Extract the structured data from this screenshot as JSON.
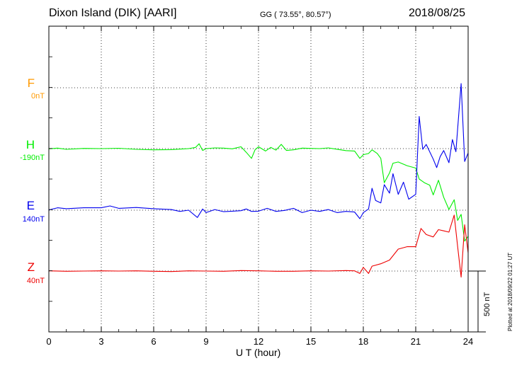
{
  "header": {
    "station": "Dixon Island (DIK)  [AARI]",
    "coords": "GG ( 73.55°,  80.57°)",
    "date": "2018/08/25"
  },
  "channels": [
    {
      "name": "F",
      "baseline": "0nT",
      "color": "#ff9900"
    },
    {
      "name": "H",
      "baseline": "-190nT",
      "color": "#00ee00"
    },
    {
      "name": "E",
      "baseline": "140nT",
      "color": "#0000ee"
    },
    {
      "name": "Z",
      "baseline": "40nT",
      "color": "#ee0000"
    }
  ],
  "scale_label": "500 nT",
  "plotted_note": "Plotted at 2018/09/22 01:27 UT",
  "chart_data": {
    "type": "line",
    "title": "Dixon Island (DIK)  [AARI]",
    "xlabel": "U T (hour)",
    "ylabel": "",
    "xlim": [
      0,
      24
    ],
    "x_ticks": [
      0,
      3,
      6,
      9,
      12,
      15,
      18,
      21,
      24
    ],
    "grid": true,
    "y_scale_bar_nT": 500,
    "series": [
      {
        "name": "H",
        "baseline_nT": -190,
        "color": "#00ee00",
        "points": [
          [
            0,
            -2
          ],
          [
            0.5,
            4
          ],
          [
            1,
            -6
          ],
          [
            2,
            2
          ],
          [
            3,
            0
          ],
          [
            4,
            3
          ],
          [
            5,
            -6
          ],
          [
            6,
            -10
          ],
          [
            7,
            -8
          ],
          [
            7.5,
            -4
          ],
          [
            8,
            0
          ],
          [
            8.4,
            10
          ],
          [
            8.6,
            40
          ],
          [
            8.8,
            -15
          ],
          [
            9,
            0
          ],
          [
            9.5,
            6
          ],
          [
            10,
            4
          ],
          [
            10.5,
            -2
          ],
          [
            11,
            15
          ],
          [
            11.3,
            -30
          ],
          [
            11.6,
            -80
          ],
          [
            11.8,
            -10
          ],
          [
            12,
            15
          ],
          [
            12.4,
            -20
          ],
          [
            12.7,
            10
          ],
          [
            13,
            -12
          ],
          [
            13.3,
            35
          ],
          [
            13.6,
            -15
          ],
          [
            14,
            -10
          ],
          [
            14.5,
            4
          ],
          [
            15,
            2
          ],
          [
            15.5,
            0
          ],
          [
            16,
            6
          ],
          [
            16.5,
            -5
          ],
          [
            17,
            -16
          ],
          [
            17.5,
            -20
          ],
          [
            17.8,
            -80
          ],
          [
            18,
            -50
          ],
          [
            18.3,
            -40
          ],
          [
            18.5,
            -10
          ],
          [
            18.8,
            -40
          ],
          [
            19,
            -80
          ],
          [
            19.2,
            -280
          ],
          [
            19.5,
            -200
          ],
          [
            19.7,
            -120
          ],
          [
            20,
            -110
          ],
          [
            20.5,
            -140
          ],
          [
            21,
            -160
          ],
          [
            21.2,
            -250
          ],
          [
            21.5,
            -280
          ],
          [
            21.8,
            -300
          ],
          [
            22,
            -380
          ],
          [
            22.3,
            -260
          ],
          [
            22.6,
            -400
          ],
          [
            22.9,
            -500
          ],
          [
            23.2,
            -420
          ],
          [
            23.4,
            -590
          ],
          [
            23.6,
            -540
          ],
          [
            23.8,
            -760
          ],
          [
            24,
            -720
          ]
        ]
      },
      {
        "name": "E",
        "baseline_nT": 140,
        "color": "#0000ee",
        "points": [
          [
            0,
            2
          ],
          [
            0.5,
            20
          ],
          [
            1,
            12
          ],
          [
            2,
            20
          ],
          [
            3,
            20
          ],
          [
            3.5,
            35
          ],
          [
            4,
            15
          ],
          [
            5,
            22
          ],
          [
            6,
            12
          ],
          [
            7,
            5
          ],
          [
            7.5,
            -10
          ],
          [
            8,
            0
          ],
          [
            8.5,
            -60
          ],
          [
            8.8,
            10
          ],
          [
            9,
            -20
          ],
          [
            9.5,
            5
          ],
          [
            10,
            -12
          ],
          [
            10.5,
            -8
          ],
          [
            11,
            -4
          ],
          [
            11.3,
            10
          ],
          [
            11.6,
            -10
          ],
          [
            12,
            -8
          ],
          [
            12.5,
            15
          ],
          [
            13,
            -10
          ],
          [
            13.5,
            -2
          ],
          [
            14,
            15
          ],
          [
            14.5,
            -20
          ],
          [
            15,
            0
          ],
          [
            15.5,
            -10
          ],
          [
            16,
            5
          ],
          [
            16.5,
            -20
          ],
          [
            17,
            -10
          ],
          [
            17.5,
            -15
          ],
          [
            17.8,
            -70
          ],
          [
            18,
            -20
          ],
          [
            18.3,
            10
          ],
          [
            18.5,
            180
          ],
          [
            18.7,
            80
          ],
          [
            19,
            60
          ],
          [
            19.2,
            210
          ],
          [
            19.5,
            140
          ],
          [
            19.7,
            300
          ],
          [
            20,
            130
          ],
          [
            20.3,
            230
          ],
          [
            20.6,
            90
          ],
          [
            21,
            130
          ],
          [
            21.2,
            770
          ],
          [
            21.4,
            500
          ],
          [
            21.6,
            540
          ],
          [
            22,
            420
          ],
          [
            22.2,
            350
          ],
          [
            22.4,
            440
          ],
          [
            22.6,
            490
          ],
          [
            22.9,
            390
          ],
          [
            23.1,
            580
          ],
          [
            23.3,
            480
          ],
          [
            23.6,
            1040
          ],
          [
            23.8,
            400
          ],
          [
            24,
            470
          ]
        ]
      },
      {
        "name": "Z",
        "baseline_nT": 40,
        "color": "#ee0000",
        "points": [
          [
            0,
            2
          ],
          [
            1,
            -2
          ],
          [
            2,
            0
          ],
          [
            3,
            2
          ],
          [
            4,
            0
          ],
          [
            5,
            2
          ],
          [
            6,
            -2
          ],
          [
            7,
            -4
          ],
          [
            8,
            2
          ],
          [
            9,
            0
          ],
          [
            10,
            -2
          ],
          [
            11,
            4
          ],
          [
            12,
            2
          ],
          [
            13,
            -2
          ],
          [
            14,
            -2
          ],
          [
            15,
            2
          ],
          [
            16,
            0
          ],
          [
            17,
            4
          ],
          [
            17.5,
            2
          ],
          [
            17.8,
            -20
          ],
          [
            18,
            30
          ],
          [
            18.3,
            -20
          ],
          [
            18.5,
            40
          ],
          [
            19,
            60
          ],
          [
            19.5,
            90
          ],
          [
            20,
            180
          ],
          [
            20.5,
            200
          ],
          [
            21,
            200
          ],
          [
            21.3,
            350
          ],
          [
            21.6,
            300
          ],
          [
            22,
            280
          ],
          [
            22.3,
            340
          ],
          [
            22.6,
            330
          ],
          [
            22.9,
            320
          ],
          [
            23.2,
            460
          ],
          [
            23.4,
            200
          ],
          [
            23.6,
            -50
          ],
          [
            23.8,
            380
          ],
          [
            24,
            150
          ]
        ]
      }
    ]
  }
}
